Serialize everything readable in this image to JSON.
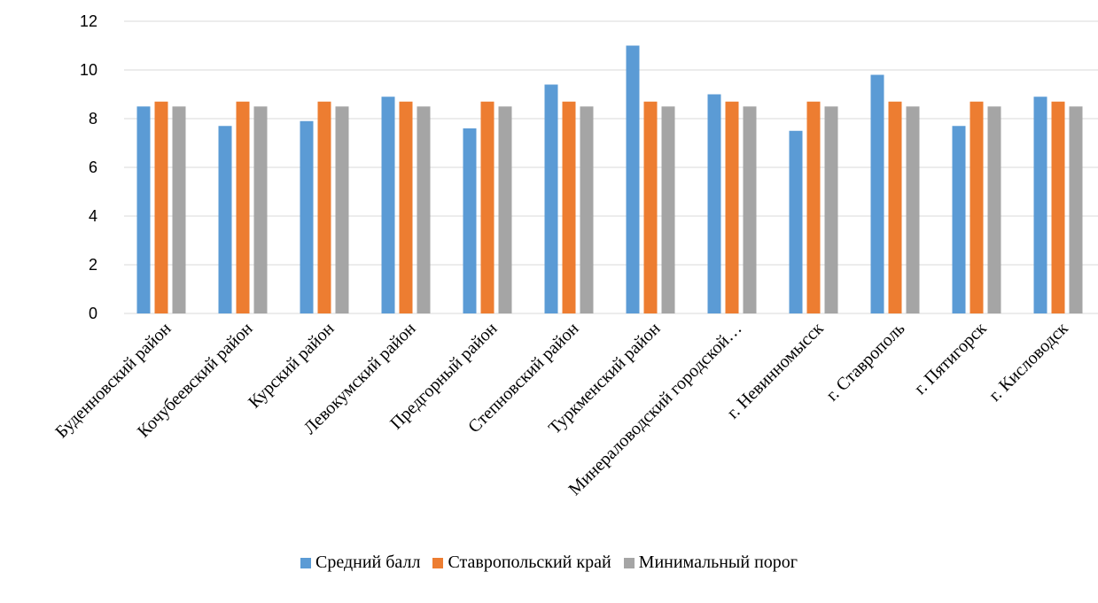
{
  "chart_data": {
    "type": "bar",
    "title": "",
    "xlabel": "",
    "ylabel": "",
    "ylim": [
      0,
      12
    ],
    "yticks": [
      0,
      2,
      4,
      6,
      8,
      10,
      12
    ],
    "grid": true,
    "legend_position": "bottom",
    "categories": [
      "Буденновский район",
      "Кочубеевский район",
      "Курский район",
      "Левокумский район",
      "Предгорный район",
      "Степновский район",
      "Туркменский район",
      "Минераловодский городской…",
      "г. Невинномысск",
      "г. Ставрополь",
      "г. Пятигорск",
      "г. Кисловодск"
    ],
    "series": [
      {
        "name": "Средний балл",
        "color": "#5B9BD5",
        "values": [
          8.5,
          7.7,
          7.9,
          8.9,
          7.6,
          9.4,
          11.0,
          9.0,
          7.5,
          9.8,
          7.7,
          8.9
        ]
      },
      {
        "name": "Ставропольский край",
        "color": "#ED7D31",
        "values": [
          8.7,
          8.7,
          8.7,
          8.7,
          8.7,
          8.7,
          8.7,
          8.7,
          8.7,
          8.7,
          8.7,
          8.7
        ]
      },
      {
        "name": "Минимальный порог",
        "color": "#A5A5A5",
        "values": [
          8.5,
          8.5,
          8.5,
          8.5,
          8.5,
          8.5,
          8.5,
          8.5,
          8.5,
          8.5,
          8.5,
          8.5
        ]
      }
    ]
  }
}
